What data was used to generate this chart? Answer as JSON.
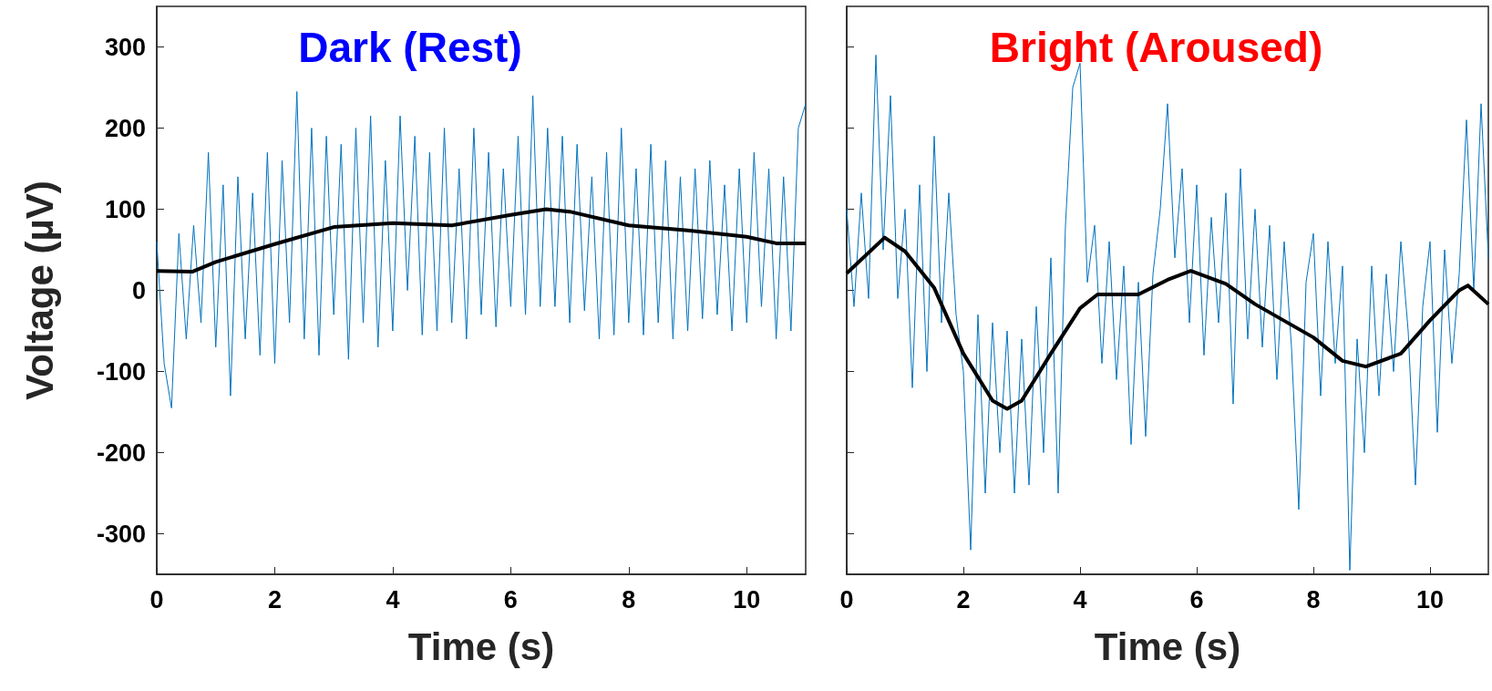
{
  "chart_data": [
    {
      "type": "line",
      "title": "Dark (Rest)",
      "xlabel": "Time (s)",
      "ylabel": "Voltage (µV)",
      "xlim": [
        0,
        11
      ],
      "xticks": [
        0,
        2,
        4,
        6,
        8,
        10
      ],
      "ylim": [
        -350,
        350
      ],
      "yticks": [
        -300,
        -200,
        -100,
        0,
        100,
        200,
        300
      ],
      "x": [
        0,
        0.125,
        0.25,
        0.375,
        0.5,
        0.625,
        0.75,
        0.875,
        1,
        1.125,
        1.25,
        1.375,
        1.5,
        1.625,
        1.75,
        1.875,
        2,
        2.125,
        2.25,
        2.375,
        2.5,
        2.625,
        2.75,
        2.875,
        3,
        3.125,
        3.25,
        3.375,
        3.5,
        3.625,
        3.75,
        3.875,
        4,
        4.125,
        4.25,
        4.375,
        4.5,
        4.625,
        4.75,
        4.875,
        5,
        5.125,
        5.25,
        5.375,
        5.5,
        5.625,
        5.75,
        5.875,
        6,
        6.125,
        6.25,
        6.375,
        6.5,
        6.625,
        6.75,
        6.875,
        7,
        7.125,
        7.25,
        7.375,
        7.5,
        7.625,
        7.75,
        7.875,
        8,
        8.125,
        8.25,
        8.375,
        8.5,
        8.625,
        8.75,
        8.875,
        9,
        9.125,
        9.25,
        9.375,
        9.5,
        9.625,
        9.75,
        9.875,
        10,
        10.125,
        10.25,
        10.375,
        10.5,
        10.625,
        10.75,
        10.875,
        11
      ],
      "series": [
        {
          "color": "#0072bd",
          "values": [
            60,
            -90,
            -145,
            70,
            -60,
            80,
            -40,
            170,
            -70,
            130,
            -130,
            140,
            -60,
            120,
            -80,
            170,
            -90,
            160,
            -40,
            245,
            -60,
            200,
            -80,
            190,
            -30,
            180,
            -85,
            200,
            -40,
            215,
            -70,
            160,
            -50,
            215,
            0,
            190,
            -55,
            170,
            -50,
            200,
            -40,
            150,
            -60,
            200,
            -30,
            170,
            -45,
            150,
            -20,
            190,
            -30,
            240,
            -20,
            200,
            -20,
            190,
            -40,
            180,
            -25,
            140,
            -60,
            170,
            -55,
            200,
            -40,
            150,
            -55,
            180,
            -40,
            160,
            -60,
            140,
            -50,
            150,
            -35,
            160,
            -30,
            130,
            -50,
            150,
            -40,
            170,
            -20,
            150,
            -60,
            140,
            -50,
            200,
            230
          ]
        },
        {
          "color": "#000000",
          "x": [
            0,
            0.6,
            1,
            2,
            3,
            4,
            5,
            6,
            6.6,
            7,
            8,
            9,
            10,
            10.5,
            11
          ],
          "values": [
            24,
            23,
            35,
            57,
            78,
            83,
            80,
            93,
            100,
            97,
            80,
            74,
            66,
            58,
            58
          ]
        }
      ]
    },
    {
      "type": "line",
      "title": "Bright (Aroused)",
      "xlabel": "Time (s)",
      "xlim": [
        0,
        11
      ],
      "xticks": [
        0,
        2,
        4,
        6,
        8,
        10
      ],
      "ylim": [
        -350,
        350
      ],
      "yticks": [
        -300,
        -200,
        -100,
        0,
        100,
        200,
        300
      ],
      "tick_labels": "x",
      "x": [
        0,
        0.125,
        0.25,
        0.375,
        0.5,
        0.625,
        0.75,
        0.875,
        1,
        1.125,
        1.25,
        1.375,
        1.5,
        1.625,
        1.75,
        1.875,
        2,
        2.125,
        2.25,
        2.375,
        2.5,
        2.625,
        2.75,
        2.875,
        3,
        3.125,
        3.25,
        3.375,
        3.5,
        3.625,
        3.75,
        3.875,
        4,
        4.125,
        4.25,
        4.375,
        4.5,
        4.625,
        4.75,
        4.875,
        5,
        5.125,
        5.25,
        5.375,
        5.5,
        5.625,
        5.75,
        5.875,
        6,
        6.125,
        6.25,
        6.375,
        6.5,
        6.625,
        6.75,
        6.875,
        7,
        7.125,
        7.25,
        7.375,
        7.5,
        7.625,
        7.75,
        7.875,
        8,
        8.125,
        8.25,
        8.375,
        8.5,
        8.625,
        8.75,
        8.875,
        9,
        9.125,
        9.25,
        9.375,
        9.5,
        9.625,
        9.75,
        9.875,
        10,
        10.125,
        10.25,
        10.375,
        10.5,
        10.625,
        10.75,
        10.875,
        11
      ],
      "series": [
        {
          "color": "#0072bd",
          "values": [
            100,
            -20,
            120,
            -10,
            290,
            50,
            240,
            -10,
            100,
            -120,
            130,
            -100,
            190,
            -40,
            120,
            -30,
            -100,
            -320,
            -30,
            -250,
            -40,
            -200,
            -50,
            -250,
            -60,
            -240,
            -20,
            -200,
            40,
            -250,
            80,
            250,
            280,
            10,
            80,
            -90,
            60,
            -110,
            30,
            -190,
            10,
            -180,
            20,
            100,
            230,
            40,
            150,
            -40,
            130,
            -80,
            90,
            -40,
            120,
            -140,
            150,
            -60,
            100,
            -70,
            80,
            -110,
            60,
            -70,
            -270,
            10,
            70,
            -130,
            60,
            -90,
            30,
            -345,
            -60,
            -200,
            30,
            -130,
            20,
            -100,
            60,
            -50,
            -240,
            -20,
            60,
            -175,
            50,
            -90,
            20,
            210,
            0,
            230,
            40
          ]
        },
        {
          "color": "#000000",
          "x": [
            0,
            0.65,
            1,
            1.5,
            2,
            2.5,
            2.75,
            3,
            3.5,
            4,
            4.3,
            5,
            5.5,
            5.9,
            6.5,
            7,
            8,
            8.5,
            8.9,
            9.5,
            10,
            10.5,
            10.65,
            11
          ],
          "values": [
            21,
            65,
            48,
            3,
            -78,
            -136,
            -146,
            -136,
            -78,
            -22,
            -5,
            -5,
            13,
            24,
            8,
            -17,
            -58,
            -87,
            -94,
            -78,
            -37,
            0,
            6,
            -17
          ]
        }
      ]
    }
  ]
}
